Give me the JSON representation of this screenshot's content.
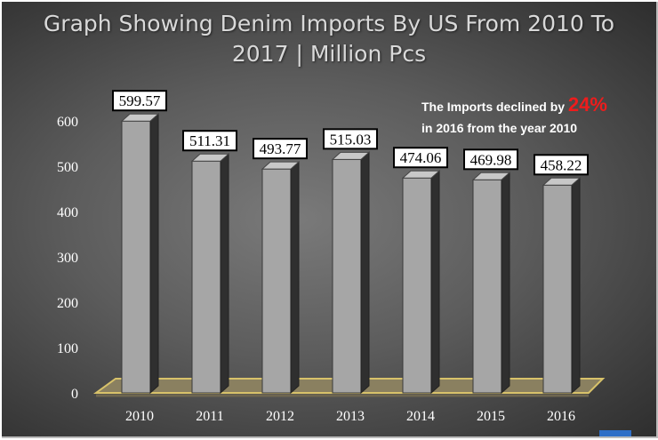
{
  "header": {
    "title_line1": "Graph Showing Denim Imports By US From 2010 To",
    "title_line2": "2017 | Million Pcs"
  },
  "annotation": {
    "text_before": "The Imports declined by",
    "highlight": "24%",
    "text_after": "in 2016 from the year 2010",
    "highlight_color": "#ee1c1c"
  },
  "chart_data": {
    "type": "bar",
    "title": "Graph Showing Denim Imports By US From 2010 To 2017 | Million Pcs",
    "categories": [
      "2010",
      "2011",
      "2012",
      "2013",
      "2014",
      "2015",
      "2016"
    ],
    "values": [
      599.57,
      511.31,
      493.77,
      515.03,
      474.06,
      469.98,
      458.22
    ],
    "data_labels": [
      "599.57",
      "511.31",
      "493.77",
      "515.03",
      "474.06",
      "469.98",
      "458.22"
    ],
    "ylim": [
      0,
      600
    ],
    "yticks": [
      0,
      100,
      200,
      300,
      400,
      500,
      600
    ],
    "xlabel": "",
    "ylabel": "",
    "grid": false,
    "legend": "none",
    "bar_color": "#a6a6a6",
    "floor_color": "#8a8060",
    "floor_edge_color": "#d8c26a"
  }
}
